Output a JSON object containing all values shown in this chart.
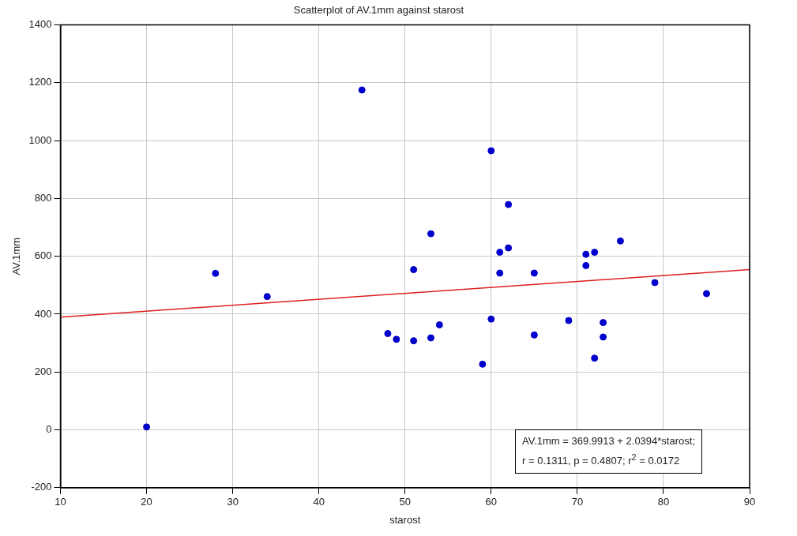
{
  "chart_data": {
    "type": "scatter",
    "title": "Scatterplot of AV.1mm against starost",
    "xlabel": "starost",
    "ylabel": "AV.1mm",
    "annotations": [
      "AV.1mm = 369.9913 + 2.0394*starost;",
      "r = 0.1311, p = 0.4807; r$^{2}$ = 0.0172"
    ],
    "series": [
      {
        "type": "scatter",
        "marker": "circle",
        "color": "#0000cc",
        "x": [
          20,
          28,
          34,
          45,
          60,
          62,
          53,
          61,
          62,
          51,
          61,
          65,
          60,
          48,
          49,
          51,
          53,
          54,
          65,
          59,
          69,
          71,
          72,
          71,
          75,
          73,
          73,
          72,
          79,
          85
        ],
        "values": [
          10,
          541,
          461,
          1175,
          965,
          779,
          678,
          614,
          629,
          554,
          542,
          542,
          383,
          333,
          313,
          308,
          318,
          363,
          328,
          227,
          378,
          607,
          614,
          568,
          653,
          371,
          321,
          248,
          509,
          471
        ]
      },
      {
        "type": "line",
        "marker": "none",
        "color": "#dd2020",
        "x": [
          10,
          90
        ],
        "values": [
          390,
          554
        ]
      }
    ],
    "xlim": [
      10,
      90
    ],
    "xticks": [
      10,
      20,
      30,
      40,
      50,
      60,
      70,
      80,
      90
    ],
    "ylim": [
      -200,
      1400
    ],
    "yticks": [
      -200,
      0,
      200,
      400,
      600,
      800,
      1000,
      1200,
      1400
    ],
    "grid": true,
    "legend": false
  }
}
